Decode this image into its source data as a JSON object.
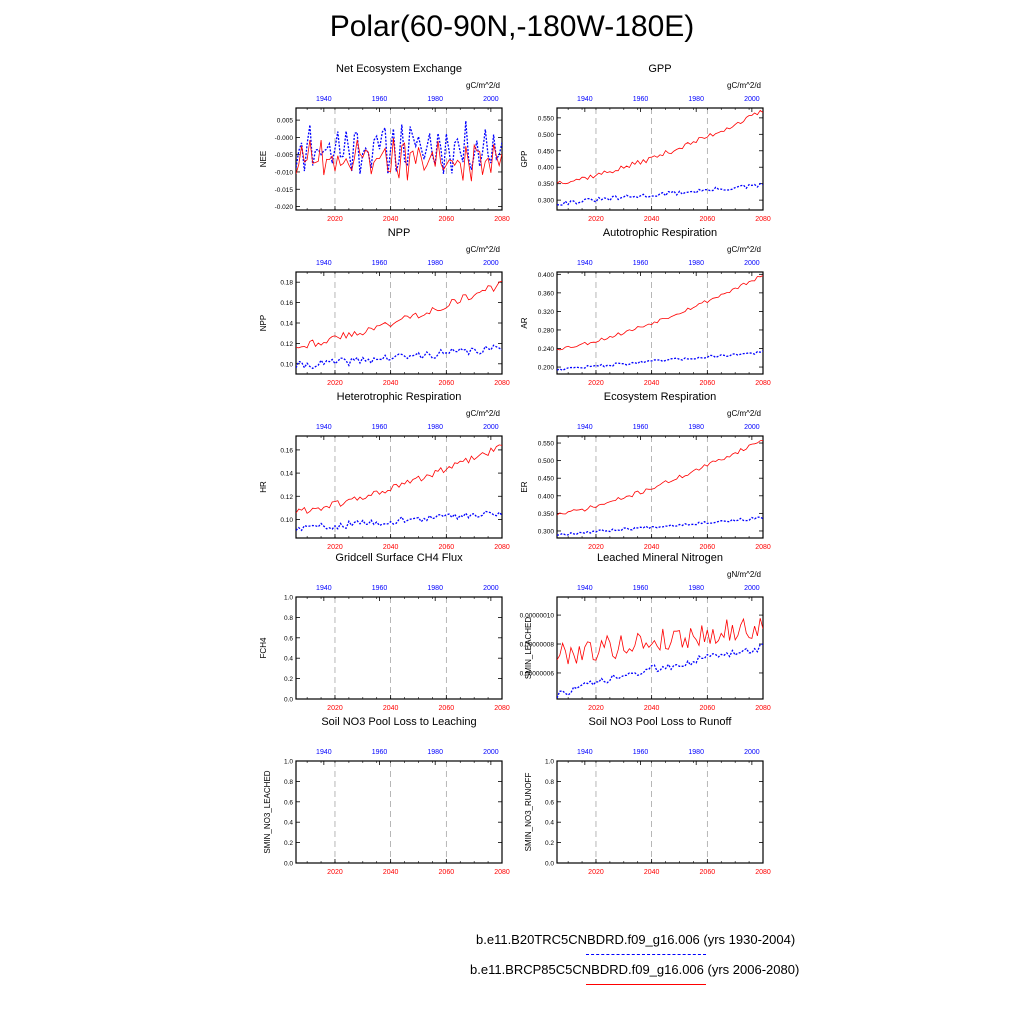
{
  "page_title": "Polar(60-90N,-180W-180E)",
  "colors": {
    "historical": "#0000ff",
    "future": "#ff0000",
    "grid": "#999999"
  },
  "legend": {
    "historical": {
      "label": "b.e11.B20TRC5CNBDRD.f09_g16.006 (yrs 1930-2004)",
      "line_style": "dashed",
      "color": "#0000ff"
    },
    "future": {
      "label": "b.e11.BRCP85C5CNBDRD.f09_g16.006 (yrs 2006-2080)",
      "line_style": "solid",
      "color": "#ff0000"
    }
  },
  "chart_data": [
    {
      "type": "line",
      "title": "Net Ecosystem Exchange",
      "ylabel": "NEE",
      "units": "gC/m^2/d",
      "ylim": [
        -0.021,
        0.0085
      ],
      "yticks": [
        "0.005",
        "-0.000",
        "-0.005",
        "-0.010",
        "-0.015",
        "-0.020"
      ],
      "ytick_values": [
        0.005,
        0,
        -0.005,
        -0.01,
        -0.015,
        -0.02
      ],
      "bottom_ticks": [
        "2020",
        "2040",
        "2060",
        "2080"
      ],
      "top_ticks": [
        "1940",
        "1960",
        "1980",
        "2000"
      ],
      "grid": "dashed-vertical",
      "series": [
        {
          "line_style": "dashed",
          "color": "#0000ff",
          "x_axis": "top",
          "x_range": [
            1930,
            2004
          ],
          "kind": "nee",
          "base": -0.003,
          "trend": 0,
          "amp": 0.0035,
          "noise": 0.0045,
          "seed": 11
        },
        {
          "line_style": "solid",
          "color": "#ff0000",
          "x_axis": "bottom",
          "x_range": [
            2006,
            2080
          ],
          "kind": "nee",
          "base": -0.006,
          "trend": 0,
          "amp": 0.003,
          "noise": 0.004,
          "seed": 23
        }
      ]
    },
    {
      "type": "line",
      "title": "GPP",
      "ylabel": "GPP",
      "units": "gC/m^2/d",
      "ylim": [
        0.27,
        0.58
      ],
      "yticks": [
        "0.550",
        "0.500",
        "0.450",
        "0.400",
        "0.350",
        "0.300"
      ],
      "ytick_values": [
        0.55,
        0.5,
        0.45,
        0.4,
        0.35,
        0.3
      ],
      "bottom_ticks": [
        "2020",
        "2040",
        "2060",
        "2080"
      ],
      "top_ticks": [
        "1940",
        "1960",
        "1980",
        "2000"
      ],
      "grid": "dashed-vertical",
      "series": [
        {
          "line_style": "dashed",
          "color": "#0000ff",
          "x_axis": "top",
          "x_range": [
            1930,
            2004
          ],
          "kind": "trend",
          "start": 0.29,
          "end": 0.345,
          "noise": 0.007,
          "seed": 31
        },
        {
          "line_style": "solid",
          "color": "#ff0000",
          "x_axis": "bottom",
          "x_range": [
            2006,
            2080
          ],
          "kind": "trend",
          "start": 0.355,
          "end": 0.57,
          "curve": 1.4,
          "noise": 0.008,
          "seed": 37
        }
      ]
    },
    {
      "type": "line",
      "title": "NPP",
      "ylabel": "NPP",
      "units": "gC/m^2/d",
      "ylim": [
        0.09,
        0.19
      ],
      "yticks": [
        "0.18",
        "0.16",
        "0.14",
        "0.12",
        "0.10"
      ],
      "ytick_values": [
        0.18,
        0.16,
        0.14,
        0.12,
        0.1
      ],
      "bottom_ticks": [
        "2020",
        "2040",
        "2060",
        "2080"
      ],
      "top_ticks": [
        "1940",
        "1960",
        "1980",
        "2000"
      ],
      "grid": "dashed-vertical",
      "series": [
        {
          "line_style": "dashed",
          "color": "#0000ff",
          "x_axis": "top",
          "x_range": [
            1930,
            2004
          ],
          "kind": "trend",
          "start": 0.098,
          "end": 0.115,
          "noise": 0.004,
          "seed": 41
        },
        {
          "line_style": "solid",
          "color": "#ff0000",
          "x_axis": "bottom",
          "x_range": [
            2006,
            2080
          ],
          "kind": "trend",
          "start": 0.118,
          "end": 0.178,
          "curve": 1.3,
          "noise": 0.004,
          "seed": 43
        }
      ]
    },
    {
      "type": "line",
      "title": "Autotrophic Respiration",
      "ylabel": "AR",
      "units": "gC/m^2/d",
      "ylim": [
        0.185,
        0.405
      ],
      "yticks": [
        "0.400",
        "0.360",
        "0.320",
        "0.280",
        "0.240",
        "0.200"
      ],
      "ytick_values": [
        0.4,
        0.36,
        0.32,
        0.28,
        0.24,
        0.2
      ],
      "bottom_ticks": [
        "2020",
        "2040",
        "2060",
        "2080"
      ],
      "top_ticks": [
        "1940",
        "1960",
        "1980",
        "2000"
      ],
      "grid": "dashed-vertical",
      "series": [
        {
          "line_style": "dashed",
          "color": "#0000ff",
          "x_axis": "top",
          "x_range": [
            1930,
            2004
          ],
          "kind": "trend",
          "start": 0.195,
          "end": 0.232,
          "noise": 0.003,
          "seed": 47
        },
        {
          "line_style": "solid",
          "color": "#ff0000",
          "x_axis": "bottom",
          "x_range": [
            2006,
            2080
          ],
          "kind": "trend",
          "start": 0.24,
          "end": 0.397,
          "curve": 1.35,
          "noise": 0.004,
          "seed": 53
        }
      ]
    },
    {
      "type": "line",
      "title": "Heterotrophic Respiration",
      "ylabel": "HR",
      "units": "gC/m^2/d",
      "ylim": [
        0.084,
        0.172
      ],
      "yticks": [
        "0.16",
        "0.14",
        "0.12",
        "0.10"
      ],
      "ytick_values": [
        0.16,
        0.14,
        0.12,
        0.1
      ],
      "bottom_ticks": [
        "2020",
        "2040",
        "2060",
        "2080"
      ],
      "top_ticks": [
        "1940",
        "1960",
        "1980",
        "2000"
      ],
      "grid": "dashed-vertical",
      "series": [
        {
          "line_style": "dashed",
          "color": "#0000ff",
          "x_axis": "top",
          "x_range": [
            1930,
            2004
          ],
          "kind": "trend",
          "start": 0.092,
          "end": 0.106,
          "noise": 0.003,
          "seed": 59
        },
        {
          "line_style": "solid",
          "color": "#ff0000",
          "x_axis": "bottom",
          "x_range": [
            2006,
            2080
          ],
          "kind": "trend",
          "start": 0.107,
          "end": 0.163,
          "curve": 1.35,
          "noise": 0.003,
          "seed": 61
        }
      ]
    },
    {
      "type": "line",
      "title": "Ecosystem Respiration",
      "ylabel": "ER",
      "units": "gC/m^2/d",
      "ylim": [
        0.28,
        0.57
      ],
      "yticks": [
        "0.550",
        "0.500",
        "0.450",
        "0.400",
        "0.350",
        "0.300"
      ],
      "ytick_values": [
        0.55,
        0.5,
        0.45,
        0.4,
        0.35,
        0.3
      ],
      "bottom_ticks": [
        "2020",
        "2040",
        "2060",
        "2080"
      ],
      "top_ticks": [
        "1940",
        "1960",
        "1980",
        "2000"
      ],
      "grid": "dashed-vertical",
      "series": [
        {
          "line_style": "dashed",
          "color": "#0000ff",
          "x_axis": "top",
          "x_range": [
            1930,
            2004
          ],
          "kind": "trend",
          "start": 0.29,
          "end": 0.337,
          "noise": 0.004,
          "seed": 67
        },
        {
          "line_style": "solid",
          "color": "#ff0000",
          "x_axis": "bottom",
          "x_range": [
            2006,
            2080
          ],
          "kind": "trend",
          "start": 0.348,
          "end": 0.56,
          "curve": 1.35,
          "noise": 0.006,
          "seed": 71
        }
      ]
    },
    {
      "type": "line",
      "title": "Gridcell Surface CH4 Flux",
      "ylabel": "FCH4",
      "units": "",
      "ylim": [
        0,
        1
      ],
      "yticks": [
        "1.0",
        "0.8",
        "0.6",
        "0.4",
        "0.2",
        "0.0"
      ],
      "ytick_values": [
        1,
        0.8,
        0.6,
        0.4,
        0.2,
        0
      ],
      "bottom_ticks": [
        "2020",
        "2040",
        "2060",
        "2080"
      ],
      "top_ticks": [
        "1940",
        "1960",
        "1980",
        "2000"
      ],
      "grid": "dashed-vertical",
      "series": []
    },
    {
      "type": "line",
      "title": "Leached Mineral Nitrogen",
      "ylabel": "SMIN_LEACHED",
      "units": "gN/m^2/d",
      "ylim": [
        4.2e-08,
        1.125e-07
      ],
      "yticks": [
        "0.00000010",
        "0.00000008",
        "0.00000006"
      ],
      "ytick_values": [
        1e-07,
        8e-08,
        6e-08
      ],
      "bottom_ticks": [
        "2020",
        "2040",
        "2060",
        "2080"
      ],
      "top_ticks": [
        "1940",
        "1960",
        "1980",
        "2000"
      ],
      "grid": "dashed-vertical",
      "series": [
        {
          "line_style": "dashed",
          "color": "#0000ff",
          "x_axis": "top",
          "x_range": [
            1930,
            2004
          ],
          "kind": "trend",
          "start": 4.4e-08,
          "end": 7.8e-08,
          "curve": 0.8,
          "noise": 2.8e-09,
          "seed": 73
        },
        {
          "line_style": "solid",
          "color": "#ff0000",
          "x_axis": "bottom",
          "x_range": [
            2006,
            2080
          ],
          "kind": "trend",
          "start": 7.3e-08,
          "end": 9.2e-08,
          "noise": 8.5e-09,
          "seed": 79
        }
      ]
    },
    {
      "type": "line",
      "title": "Soil NO3 Pool Loss to Leaching",
      "ylabel": "SMIN_NO3_LEACHED",
      "units": "",
      "ylim": [
        0,
        1
      ],
      "yticks": [
        "1.0",
        "0.8",
        "0.6",
        "0.4",
        "0.2",
        "0.0"
      ],
      "ytick_values": [
        1,
        0.8,
        0.6,
        0.4,
        0.2,
        0
      ],
      "bottom_ticks": [
        "2020",
        "2040",
        "2060",
        "2080"
      ],
      "top_ticks": [
        "1940",
        "1960",
        "1980",
        "2000"
      ],
      "grid": "dashed-vertical",
      "series": []
    },
    {
      "type": "line",
      "title": "Soil NO3 Pool Loss to Runoff",
      "ylabel": "SMIN_NO3_RUNOFF",
      "units": "",
      "ylim": [
        0,
        1
      ],
      "yticks": [
        "1.0",
        "0.8",
        "0.6",
        "0.4",
        "0.2",
        "0.0"
      ],
      "ytick_values": [
        1,
        0.8,
        0.6,
        0.4,
        0.2,
        0
      ],
      "bottom_ticks": [
        "2020",
        "2040",
        "2060",
        "2080"
      ],
      "top_ticks": [
        "1940",
        "1960",
        "1980",
        "2000"
      ],
      "grid": "dashed-vertical",
      "series": []
    }
  ]
}
